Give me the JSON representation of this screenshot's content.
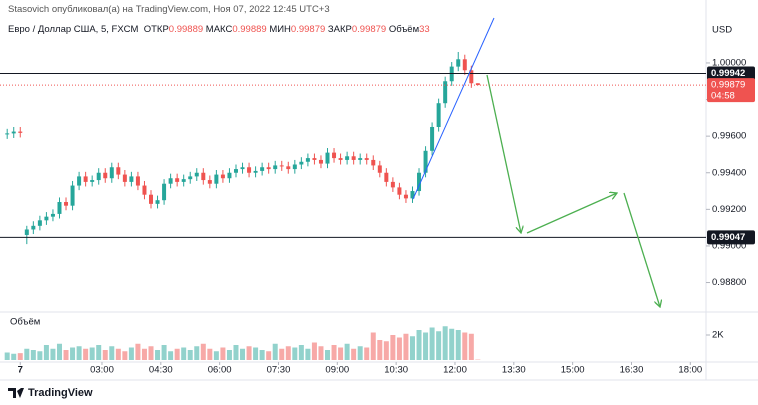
{
  "chart_data": {
    "type": "candlestick",
    "published": "Stasovich опубликовал(а) на TradingView.com, Ноя 07, 2022 12:45 UTC+3",
    "symbol": "Евро / Доллар США, 5, FXCM",
    "legend": [
      {
        "label": "ОТКР",
        "value": 0.99889
      },
      {
        "label": "МАКС",
        "value": 0.99889
      },
      {
        "label": "МИН",
        "value": 0.99879
      },
      {
        "label": "ЗАКР",
        "value": 0.99879
      },
      {
        "label": "Объём",
        "value": 33
      }
    ],
    "currency": "USD",
    "volume_pane_title": "Объём",
    "countdown": "04:58",
    "brand": "TradingView",
    "up_color": "#26a69a",
    "down_color": "#ef5350",
    "grid": false,
    "x": [
      35,
      45,
      55,
      65,
      75,
      85,
      95,
      105,
      115,
      125,
      135,
      145,
      155,
      165,
      175,
      185,
      195,
      205,
      215,
      225,
      235,
      245,
      255,
      265,
      275,
      285,
      295,
      305,
      315,
      325,
      335,
      345,
      355,
      365,
      375,
      385,
      395,
      405,
      415,
      425,
      435,
      445,
      455,
      465,
      475,
      485,
      495,
      505,
      515,
      525,
      535,
      545,
      555,
      565,
      575,
      585,
      595,
      605,
      615,
      625,
      635,
      645,
      655,
      665,
      675,
      685,
      695,
      705,
      715,
      725,
      735,
      745,
      755
    ],
    "open": [
      0.9961,
      0.99615,
      0.99625,
      0.9906,
      0.9909,
      0.9911,
      0.9914,
      0.9916,
      0.99175,
      0.9924,
      0.9922,
      0.9933,
      0.9938,
      0.9935,
      0.9936,
      0.994,
      0.9937,
      0.9943,
      0.9939,
      0.9935,
      0.9938,
      0.9933,
      0.9928,
      0.9923,
      0.9925,
      0.9934,
      0.9937,
      0.9935,
      0.99365,
      0.9938,
      0.994,
      0.9936,
      0.9934,
      0.9939,
      0.9937,
      0.994,
      0.9942,
      0.9943,
      0.994,
      0.9941,
      0.9943,
      0.9942,
      0.9944,
      0.99435,
      0.9942,
      0.99445,
      0.9946,
      0.9948,
      0.9947,
      0.9945,
      0.9951,
      0.9948,
      0.9947,
      0.9949,
      0.9947,
      0.9948,
      0.9947,
      0.9944,
      0.994,
      0.9935,
      0.9932,
      0.9928,
      0.9926,
      0.993,
      0.994,
      0.9952,
      0.9965,
      0.9978,
      0.999,
      0.9998,
      1.0002,
      0.9996,
      0.99889
    ],
    "high": [
      0.9964,
      0.9965,
      0.9965,
      0.9911,
      0.99135,
      0.99165,
      0.99185,
      0.992,
      0.99265,
      0.99265,
      0.99355,
      0.99405,
      0.99405,
      0.99385,
      0.99425,
      0.99425,
      0.99455,
      0.99455,
      0.99415,
      0.99405,
      0.99405,
      0.99355,
      0.99305,
      0.99275,
      0.99365,
      0.99395,
      0.99395,
      0.9939,
      0.99405,
      0.99425,
      0.99425,
      0.99385,
      0.99415,
      0.99415,
      0.99425,
      0.99445,
      0.99455,
      0.99455,
      0.99435,
      0.99455,
      0.99455,
      0.99465,
      0.99465,
      0.9946,
      0.9947,
      0.99485,
      0.99505,
      0.99505,
      0.99495,
      0.99535,
      0.99535,
      0.99505,
      0.99515,
      0.99515,
      0.99505,
      0.99505,
      0.99495,
      0.99465,
      0.99425,
      0.99375,
      0.99345,
      0.99305,
      0.99325,
      0.99425,
      0.99545,
      0.99675,
      0.99805,
      0.99925,
      1.00005,
      1.0006,
      1.00045,
      0.99985,
      0.99889
    ],
    "low": [
      0.99585,
      0.9959,
      0.99593,
      0.9901,
      0.99065,
      0.99085,
      0.99115,
      0.99135,
      0.9915,
      0.99195,
      0.99195,
      0.99305,
      0.99325,
      0.99325,
      0.99335,
      0.99345,
      0.99345,
      0.99365,
      0.99325,
      0.99325,
      0.99305,
      0.99255,
      0.99205,
      0.99205,
      0.99225,
      0.99315,
      0.99325,
      0.99325,
      0.9934,
      0.99355,
      0.99335,
      0.99315,
      0.99315,
      0.99345,
      0.99345,
      0.99375,
      0.99395,
      0.99375,
      0.99375,
      0.99385,
      0.99395,
      0.99395,
      0.9941,
      0.99395,
      0.99395,
      0.9942,
      0.99435,
      0.99445,
      0.99425,
      0.99425,
      0.99455,
      0.99445,
      0.99445,
      0.99445,
      0.99445,
      0.99445,
      0.99415,
      0.99375,
      0.99325,
      0.99295,
      0.99255,
      0.99235,
      0.99235,
      0.99275,
      0.99375,
      0.99495,
      0.99625,
      0.99755,
      0.99875,
      0.99955,
      0.99935,
      0.99864,
      0.99879
    ],
    "close": [
      0.99615,
      0.99625,
      0.99618,
      0.9909,
      0.9911,
      0.9914,
      0.9916,
      0.99175,
      0.9924,
      0.9922,
      0.9933,
      0.9938,
      0.9935,
      0.9936,
      0.994,
      0.9937,
      0.9943,
      0.9939,
      0.9935,
      0.9938,
      0.9933,
      0.9928,
      0.9923,
      0.9925,
      0.9934,
      0.9937,
      0.9935,
      0.99365,
      0.9938,
      0.994,
      0.9936,
      0.9934,
      0.9939,
      0.9937,
      0.994,
      0.9942,
      0.9943,
      0.994,
      0.9941,
      0.9943,
      0.9942,
      0.9944,
      0.99435,
      0.9942,
      0.99445,
      0.9946,
      0.9948,
      0.9947,
      0.9945,
      0.9951,
      0.9948,
      0.9947,
      0.9949,
      0.9947,
      0.9948,
      0.9947,
      0.9944,
      0.994,
      0.9935,
      0.9932,
      0.9928,
      0.9926,
      0.993,
      0.994,
      0.9952,
      0.9965,
      0.9978,
      0.999,
      0.9998,
      1.0002,
      0.9996,
      0.99889,
      0.99879
    ],
    "volume": [
      600,
      500,
      550,
      900,
      800,
      700,
      1200,
      900,
      1300,
      800,
      1000,
      1100,
      900,
      1000,
      1200,
      800,
      1100,
      900,
      700,
      1000,
      1300,
      900,
      1100,
      800,
      1200,
      700,
      900,
      1000,
      800,
      1100,
      1300,
      900,
      700,
      1000,
      800,
      1200,
      900,
      1100,
      1000,
      800,
      700,
      1300,
      900,
      1100,
      1000,
      1200,
      900,
      1400,
      1100,
      800,
      1200,
      1000,
      1300,
      900,
      1100,
      1000,
      2200,
      1600,
      1500,
      2000,
      1800,
      2100,
      1900,
      2400,
      2200,
      2600,
      2300,
      2700,
      2500,
      2400,
      2200,
      2100,
      33
    ],
    "xlim": [
      24,
      1104
    ],
    "xticks": [
      {
        "value": 55,
        "label": "7"
      },
      {
        "value": 180,
        "label": "03:00"
      },
      {
        "value": 270,
        "label": "04:30"
      },
      {
        "value": 360,
        "label": "06:00"
      },
      {
        "value": 450,
        "label": "07:30"
      },
      {
        "value": 540,
        "label": "09:00"
      },
      {
        "value": 630,
        "label": "10:30"
      },
      {
        "value": 720,
        "label": "12:00"
      },
      {
        "value": 810,
        "label": "13:30"
      },
      {
        "value": 900,
        "label": "15:00"
      },
      {
        "value": 990,
        "label": "16:30"
      },
      {
        "value": 1080,
        "label": "18:00"
      }
    ],
    "ylim": [
      0.98639,
      1.00344
    ],
    "yticks": [
      {
        "value": 1,
        "label": "1.00000"
      },
      {
        "value": 0.998,
        "label": "0.99800"
      },
      {
        "value": 0.996,
        "label": "0.99600"
      },
      {
        "value": 0.994,
        "label": "0.99400"
      },
      {
        "value": 0.992,
        "label": "0.99200"
      },
      {
        "value": 0.99,
        "label": "0.99000"
      },
      {
        "value": 0.988,
        "label": "0.98800"
      }
    ],
    "vlim": [
      0,
      3200
    ],
    "vticks": [
      {
        "value": 2000,
        "label": "2K"
      }
    ],
    "price_lines": [
      0.99942,
      0.99047
    ]
  }
}
